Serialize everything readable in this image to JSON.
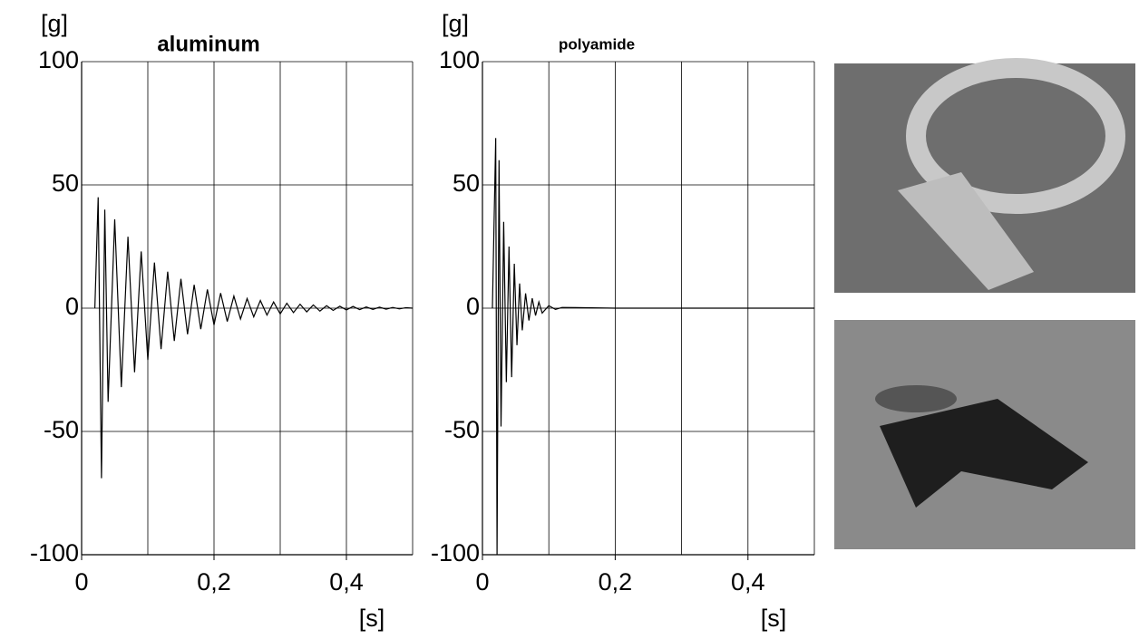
{
  "chart_data": [
    {
      "type": "line",
      "title": "aluminum",
      "y_label": "[g]",
      "x_label": "[s]",
      "xlim": [
        0,
        0.5
      ],
      "ylim": [
        -100,
        100
      ],
      "yticks": [
        -100,
        -50,
        0,
        50,
        100
      ],
      "xticks": [
        0,
        {
          "value": 0.2,
          "label": "0,2"
        },
        {
          "value": 0.4,
          "label": "0,4"
        }
      ],
      "xgrid": [
        0.1,
        0.2,
        0.3,
        0.4,
        0.5
      ],
      "grid": true,
      "series": [
        {
          "color": "#000000",
          "x": [
            0.02,
            0.025,
            0.03,
            0.035,
            0.04,
            0.05,
            0.06,
            0.07,
            0.08,
            0.09,
            0.1,
            0.11,
            0.12,
            0.13,
            0.14,
            0.15,
            0.16,
            0.17,
            0.18,
            0.19,
            0.2,
            0.21,
            0.22,
            0.23,
            0.24,
            0.25,
            0.26,
            0.27,
            0.28,
            0.29,
            0.3,
            0.31,
            0.32,
            0.33,
            0.34,
            0.35,
            0.36,
            0.37,
            0.38,
            0.39,
            0.4,
            0.41,
            0.42,
            0.43,
            0.44,
            0.45,
            0.46,
            0.47,
            0.48,
            0.49,
            0.5
          ],
          "values": [
            0,
            45,
            -69,
            40,
            -38,
            36,
            -32,
            29,
            -26,
            23,
            -21,
            18.5,
            -16.6,
            14.8,
            -13.3,
            11.9,
            -10.6,
            9.5,
            -8.5,
            7.6,
            -6.8,
            6.1,
            -5.4,
            4.9,
            -4.4,
            3.9,
            -3.5,
            3.1,
            -2.8,
            2.5,
            -2.3,
            2,
            -1.8,
            1.6,
            -1.5,
            1.3,
            -1.2,
            1,
            -0.9,
            0.8,
            -0.7,
            0.7,
            -0.6,
            0.5,
            -0.5,
            0.4,
            -0.4,
            0.3,
            -0.3,
            0.2,
            0
          ]
        }
      ]
    },
    {
      "type": "line",
      "title": "polyamide",
      "y_label": "[g]",
      "x_label": "[s]",
      "xlim": [
        0,
        0.5
      ],
      "ylim": [
        -100,
        100
      ],
      "yticks": [
        -100,
        -50,
        0,
        50,
        100
      ],
      "xticks": [
        0,
        {
          "value": 0.2,
          "label": "0,2"
        },
        {
          "value": 0.4,
          "label": "0,4"
        }
      ],
      "xgrid": [
        0.1,
        0.2,
        0.3,
        0.4,
        0.5
      ],
      "grid": true,
      "series": [
        {
          "color": "#000000",
          "x": [
            0.015,
            0.02,
            0.022,
            0.025,
            0.028,
            0.032,
            0.036,
            0.04,
            0.044,
            0.048,
            0.052,
            0.056,
            0.06,
            0.065,
            0.07,
            0.075,
            0.08,
            0.085,
            0.09,
            0.1,
            0.11,
            0.12,
            0.2,
            0.3,
            0.4,
            0.5
          ],
          "values": [
            0,
            69,
            -100,
            60,
            -48,
            35,
            -30,
            25,
            -28,
            18,
            -15,
            10,
            -9,
            6,
            -5,
            4,
            -3,
            2.5,
            -2,
            1,
            -0.5,
            0.3,
            0,
            0,
            0,
            0
          ]
        }
      ]
    }
  ]
}
